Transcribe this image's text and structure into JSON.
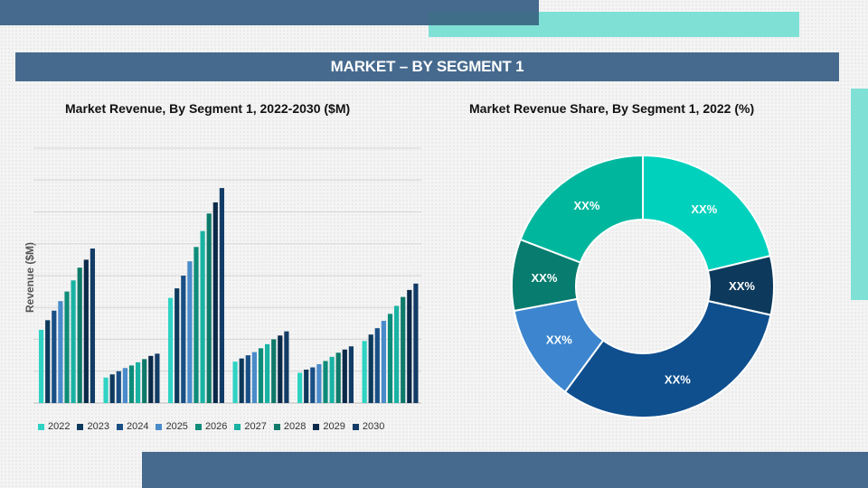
{
  "header": {
    "title": "MARKET – BY SEGMENT 1"
  },
  "chart_data": [
    {
      "type": "bar",
      "title": "Market Revenue, By Segment 1, 2022-2030 ($M)",
      "ylabel": "Revenue ($M)",
      "xlabel": "",
      "categories": [
        "",
        "",
        "",
        "",
        "",
        ""
      ],
      "ylim": [
        0,
        8
      ],
      "grid": true,
      "legend_position": "bottom",
      "series": [
        {
          "name": "2022",
          "color": "#2fd3c4",
          "values": [
            2.3,
            0.8,
            3.3,
            1.3,
            0.95,
            1.95
          ]
        },
        {
          "name": "2023",
          "color": "#0d3a5c",
          "values": [
            2.6,
            0.9,
            3.6,
            1.4,
            1.05,
            2.15
          ]
        },
        {
          "name": "2024",
          "color": "#1a4f86",
          "values": [
            2.9,
            1.0,
            4.0,
            1.5,
            1.12,
            2.35
          ]
        },
        {
          "name": "2025",
          "color": "#4a8bcb",
          "values": [
            3.2,
            1.1,
            4.45,
            1.6,
            1.22,
            2.58
          ]
        },
        {
          "name": "2026",
          "color": "#0e8c7a",
          "values": [
            3.5,
            1.18,
            4.9,
            1.72,
            1.32,
            2.8
          ]
        },
        {
          "name": "2027",
          "color": "#19b3a4",
          "values": [
            3.85,
            1.28,
            5.4,
            1.85,
            1.45,
            3.05
          ]
        },
        {
          "name": "2028",
          "color": "#0f7a6a",
          "values": [
            4.25,
            1.38,
            5.95,
            2.0,
            1.58,
            3.33
          ]
        },
        {
          "name": "2029",
          "color": "#0b2a4a",
          "values": [
            4.5,
            1.48,
            6.3,
            2.12,
            1.68,
            3.55
          ]
        },
        {
          "name": "2030",
          "color": "#123c66",
          "values": [
            4.85,
            1.55,
            6.75,
            2.25,
            1.78,
            3.75
          ]
        }
      ]
    },
    {
      "type": "pie",
      "title": "Market Revenue Share, By Segment 1, 2022 (%)",
      "donut": true,
      "slices": [
        {
          "label": "XX%",
          "value": 20.5,
          "color": "#00d1bd"
        },
        {
          "label": "XX%",
          "value": 7.0,
          "color": "#0d3a5c"
        },
        {
          "label": "XX%",
          "value": 30.5,
          "color": "#0f4f8e"
        },
        {
          "label": "XX%",
          "value": 11.5,
          "color": "#3d86cf"
        },
        {
          "label": "XX%",
          "value": 8.5,
          "color": "#087c6e"
        },
        {
          "label": "XX%",
          "value": 18.5,
          "color": "#00b79e"
        }
      ]
    }
  ]
}
